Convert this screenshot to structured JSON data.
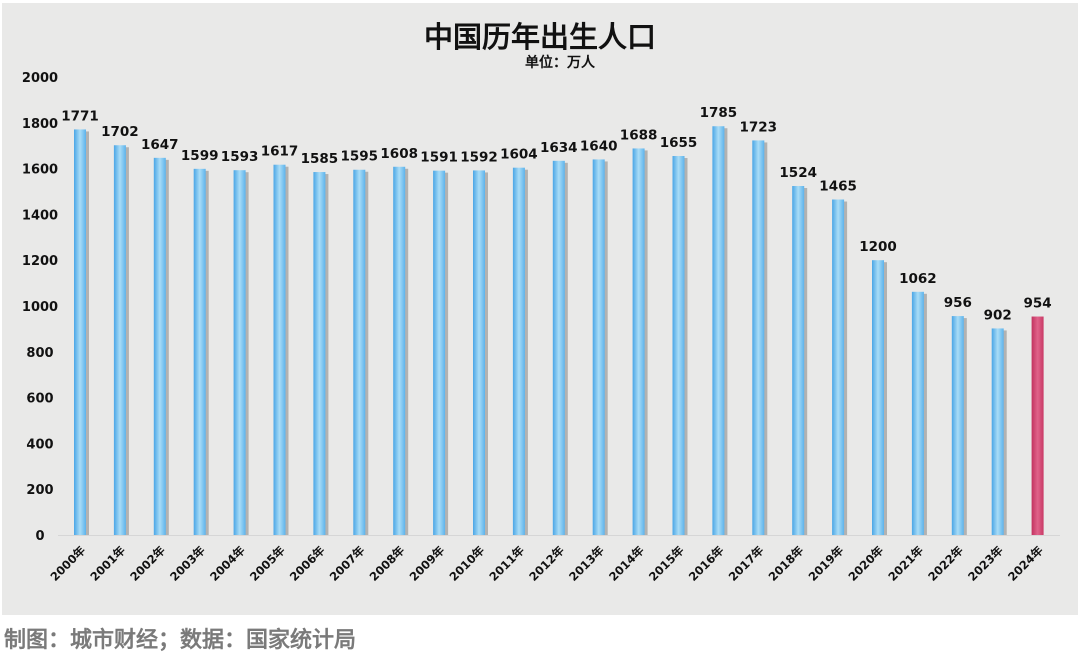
{
  "chart_data": {
    "type": "bar",
    "title": "中国历年出生人口",
    "subtitle": "单位：万人",
    "categories": [
      "2000年",
      "2001年",
      "2002年",
      "2003年",
      "2004年",
      "2005年",
      "2006年",
      "2007年",
      "2008年",
      "2009年",
      "2010年",
      "2011年",
      "2012年",
      "2013年",
      "2014年",
      "2015年",
      "2016年",
      "2017年",
      "2018年",
      "2019年",
      "2020年",
      "2021年",
      "2022年",
      "2023年",
      "2024年"
    ],
    "values": [
      1771,
      1702,
      1647,
      1599,
      1593,
      1617,
      1585,
      1595,
      1608,
      1591,
      1592,
      1604,
      1634,
      1640,
      1688,
      1655,
      1785,
      1723,
      1524,
      1465,
      1200,
      1062,
      956,
      902,
      954
    ],
    "ylim": [
      0,
      2000
    ],
    "yticks": [
      0,
      200,
      400,
      600,
      800,
      1000,
      1200,
      1400,
      1600,
      1800,
      2000
    ],
    "grid": false,
    "legend": "none",
    "colors": {
      "bar": "#5fb4ea",
      "highlight": "#d2406e",
      "background": "#e9e9e8"
    },
    "highlight_index": 24
  },
  "footer": "制图：城市财经；数据：国家统计局"
}
